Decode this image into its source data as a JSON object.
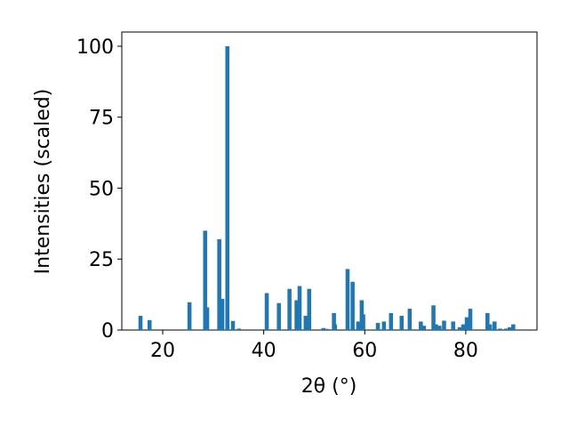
{
  "chart_data": {
    "type": "bar",
    "x_label": "2θ (°)",
    "y_label": "Intensities (scaled)",
    "color": "#1f77b4",
    "x": [
      15.6,
      17.4,
      25.3,
      28.4,
      28.8,
      31.2,
      31.8,
      32.8,
      33.9,
      35.1,
      40.6,
      43.0,
      45.1,
      46.5,
      47.1,
      48.3,
      49.0,
      51.8,
      52.5,
      53.9,
      54.1,
      56.6,
      57.6,
      58.7,
      59.4,
      59.7,
      62.6,
      63.8,
      65.2,
      67.3,
      68.9,
      71.1,
      71.7,
      73.6,
      74.1,
      74.8,
      75.7,
      77.5,
      78.8,
      79.5,
      80.2,
      80.9,
      84.3,
      84.8,
      85.7,
      86.8,
      88.0,
      88.7,
      89.4
    ],
    "values": [
      5,
      3.5,
      9.8,
      35,
      8,
      32,
      11,
      100,
      3.2,
      0.5,
      13,
      9.5,
      14.5,
      10.5,
      15.5,
      5,
      14.5,
      0.7,
      0.4,
      6,
      2,
      21.5,
      17,
      3,
      10.5,
      5.5,
      2.5,
      3,
      6,
      5,
      7.5,
      3,
      1.5,
      8.7,
      2,
      1.5,
      3.3,
      3,
      1,
      2,
      4.5,
      7.5,
      6,
      2,
      3,
      0.5,
      0.5,
      1,
      2
    ],
    "xlim": [
      11.9,
      94.1
    ],
    "ylim": [
      0,
      105
    ],
    "xticks": [
      20,
      40,
      60,
      80
    ],
    "yticks": [
      0,
      25,
      50,
      75,
      100
    ]
  }
}
